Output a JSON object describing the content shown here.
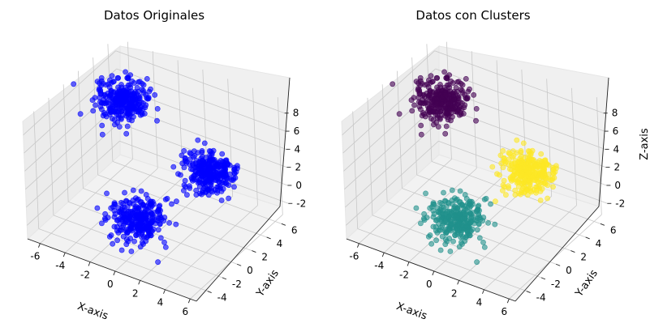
{
  "chart_data": [
    {
      "type": "scatter",
      "title": "Datos Originales",
      "xlabel": "X-axis",
      "ylabel": "Y-axis",
      "zlabel": "",
      "xlim": [
        -7,
        6.5
      ],
      "ylim": [
        -5.5,
        7
      ],
      "zlim": [
        -3.5,
        9.5
      ],
      "x_ticks": [
        "-6",
        "-4",
        "-2",
        "0",
        "2",
        "4",
        "6"
      ],
      "y_ticks": [
        "-4",
        "-2",
        "0",
        "2",
        "4",
        "6"
      ],
      "z_ticks": [
        "-2",
        "0",
        "2",
        "4",
        "6",
        "8"
      ],
      "grid": true,
      "colors": {
        "points": "#0000ff"
      },
      "clusters": [
        {
          "center": [
            -3.5,
            2.0,
            8.0
          ]
        },
        {
          "center": [
            3.0,
            2.5,
            3.0
          ]
        },
        {
          "center": [
            0.5,
            -3.0,
            0.5
          ]
        }
      ]
    },
    {
      "type": "scatter",
      "title": "Datos con Clusters",
      "xlabel": "X-axis",
      "ylabel": "Y-axis",
      "zlabel": "Z-axis",
      "xlim": [
        -7,
        6.5
      ],
      "ylim": [
        -5.5,
        7
      ],
      "zlim": [
        -3.5,
        9.5
      ],
      "x_ticks": [
        "-6",
        "-4",
        "-2",
        "0",
        "2",
        "4",
        "6"
      ],
      "y_ticks": [
        "-4",
        "-2",
        "0",
        "2",
        "4",
        "6"
      ],
      "z_ticks": [
        "-2",
        "0",
        "2",
        "4",
        "6",
        "8"
      ],
      "grid": true,
      "clusters": [
        {
          "label": 0,
          "color": "#440154",
          "center": [
            -3.5,
            2.0,
            8.0
          ]
        },
        {
          "label": 2,
          "color": "#fde725",
          "center": [
            3.0,
            2.5,
            3.0
          ]
        },
        {
          "label": 1,
          "color": "#21918c",
          "center": [
            0.5,
            -3.0,
            0.5
          ]
        }
      ]
    }
  ]
}
